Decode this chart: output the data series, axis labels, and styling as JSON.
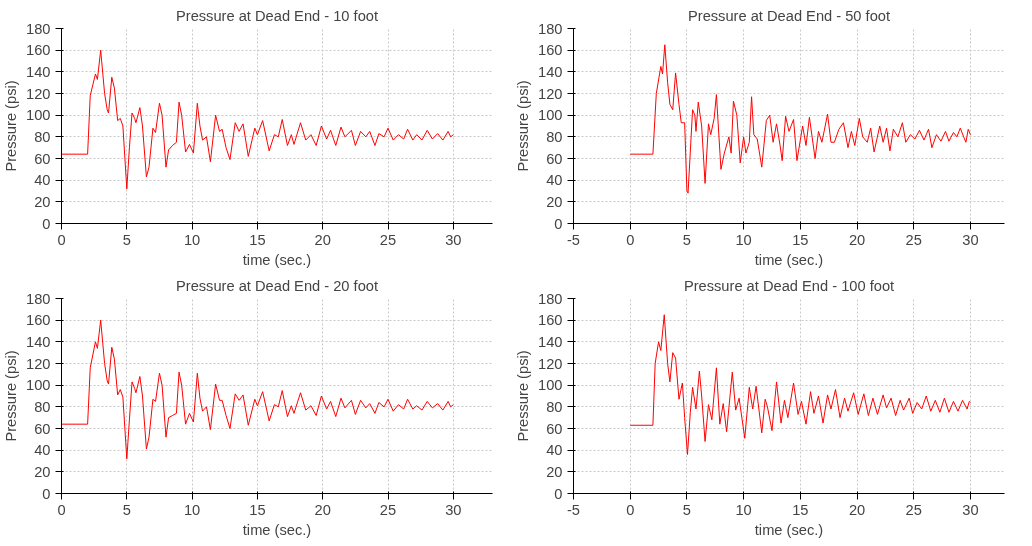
{
  "chart_data": [
    {
      "type": "line",
      "title": "Pressure at Dead End - 10 foot",
      "xlabel": "time (sec.)",
      "ylabel": "Pressure (psi)",
      "xlim": [
        0,
        33
      ],
      "ylim": [
        0,
        180
      ],
      "xticks": [
        0,
        5,
        10,
        15,
        20,
        25,
        30
      ],
      "yticks": [
        0,
        20,
        40,
        60,
        80,
        100,
        120,
        140,
        160,
        180
      ],
      "grid": true,
      "marker": "none",
      "line_style": "solid",
      "series": [
        {
          "color": "#ff0000",
          "x": [
            0,
            2,
            2.2,
            2.6,
            2.75,
            3,
            3.3,
            3.5,
            3.6,
            3.85,
            4.05,
            4.3,
            4.5,
            4.7,
            5,
            5.2,
            5.4,
            5.6,
            5.7,
            6,
            6.2,
            6.5,
            6.7,
            7,
            7.2,
            7.5,
            7.7,
            8,
            8.2,
            8.5,
            8.8,
            9,
            9.2,
            9.5,
            9.8,
            10.1,
            10.4,
            10.6,
            10.8,
            11.1,
            11.4,
            11.8,
            12.1,
            12.3,
            12.6,
            12.9,
            13.3,
            13.6,
            13.9,
            14.3,
            14.8,
            15,
            15.4,
            15.9,
            16.3,
            16.6,
            16.9,
            17.3,
            17.6,
            17.8,
            18.3,
            18.7,
            19.1,
            19.5,
            19.9,
            20.3,
            20.6,
            21,
            21.4,
            21.7,
            22.2,
            22.5,
            22.9,
            23.3,
            23.6,
            24,
            24.3,
            24.7,
            25,
            25.4,
            25.8,
            26.2,
            26.5,
            26.9,
            27.2,
            27.6,
            28,
            28.4,
            28.8,
            29.2,
            29.6,
            29.8,
            30
          ],
          "values": [
            64,
            64,
            118,
            138,
            133,
            160,
            120,
            105,
            102,
            135,
            125,
            95,
            97,
            90,
            32,
            70,
            102,
            97,
            93,
            107,
            90,
            43,
            52,
            88,
            84,
            111,
            100,
            52,
            68,
            72,
            75,
            112,
            100,
            66,
            73,
            65,
            111,
            90,
            77,
            80,
            57,
            100,
            85,
            87,
            70,
            59,
            93,
            85,
            92,
            62,
            88,
            82,
            95,
            67,
            82,
            80,
            96,
            72,
            82,
            73,
            93,
            77,
            82,
            72,
            90,
            78,
            86,
            72,
            89,
            80,
            86,
            72,
            85,
            80,
            85,
            72,
            83,
            80,
            88,
            77,
            82,
            78,
            87,
            77,
            82,
            77,
            86,
            78,
            83,
            77,
            85,
            80,
            82
          ]
        }
      ]
    },
    {
      "type": "line",
      "title": "Pressure at Dead End - 50 foot",
      "xlabel": "time (sec.)",
      "ylabel": "Pressure (psi)",
      "xlim": [
        -5,
        33
      ],
      "ylim": [
        0,
        180
      ],
      "xticks": [
        -5,
        0,
        5,
        10,
        15,
        20,
        25,
        30
      ],
      "yticks": [
        0,
        20,
        40,
        60,
        80,
        100,
        120,
        140,
        160,
        180
      ],
      "grid": true,
      "marker": "none",
      "line_style": "solid",
      "series": [
        {
          "color": "#ff0000",
          "x": [
            0,
            2,
            2.3,
            2.7,
            2.85,
            3.05,
            3.3,
            3.5,
            3.75,
            4,
            4.3,
            4.5,
            4.8,
            5,
            5.1,
            5.5,
            5.7,
            5.8,
            6,
            6.3,
            6.6,
            6.9,
            7.1,
            7.4,
            7.6,
            8,
            8.3,
            8.7,
            8.9,
            9.1,
            9.4,
            9.7,
            10,
            10.2,
            10.5,
            10.7,
            10.9,
            11.2,
            11.6,
            12,
            12.3,
            12.6,
            12.9,
            13.2,
            13.4,
            13.7,
            14,
            14.4,
            14.7,
            15.2,
            15.5,
            15.8,
            16.3,
            16.6,
            16.9,
            17.4,
            17.7,
            18,
            18.4,
            18.8,
            19.2,
            19.5,
            19.8,
            20.2,
            20.5,
            20.9,
            21.2,
            21.5,
            22,
            22.3,
            22.6,
            22.9,
            23.2,
            23.6,
            24,
            24.3,
            24.7,
            25.1,
            25.5,
            25.9,
            26.3,
            26.6,
            27,
            27.4,
            27.8,
            28.1,
            28.5,
            28.8,
            29.1,
            29.4,
            29.6,
            29.8,
            30
          ],
          "values": [
            64,
            64,
            120,
            145,
            138,
            165,
            130,
            110,
            105,
            139,
            110,
            93,
            93,
            30,
            28,
            105,
            100,
            85,
            112,
            90,
            37,
            92,
            82,
            97,
            119,
            50,
            65,
            80,
            65,
            113,
            100,
            56,
            80,
            65,
            75,
            117,
            82,
            78,
            52,
            95,
            100,
            75,
            92,
            73,
            58,
            99,
            85,
            96,
            58,
            90,
            72,
            98,
            60,
            85,
            75,
            101,
            75,
            75,
            87,
            93,
            70,
            85,
            72,
            97,
            80,
            75,
            88,
            66,
            90,
            75,
            88,
            67,
            87,
            80,
            93,
            75,
            82,
            78,
            86,
            77,
            87,
            70,
            82,
            76,
            85,
            76,
            84,
            80,
            88,
            80,
            75,
            87,
            82
          ]
        }
      ]
    },
    {
      "type": "line",
      "title": "Pressure at Dead End - 20 foot",
      "xlabel": "time (sec.)",
      "ylabel": "Pressure (psi)",
      "xlim": [
        0,
        33
      ],
      "ylim": [
        0,
        180
      ],
      "xticks": [
        0,
        5,
        10,
        15,
        20,
        25,
        30
      ],
      "yticks": [
        0,
        20,
        40,
        60,
        80,
        100,
        120,
        140,
        160,
        180
      ],
      "grid": true,
      "marker": "none",
      "line_style": "solid",
      "series": [
        {
          "color": "#ff0000",
          "x": [
            0,
            2,
            2.2,
            2.6,
            2.75,
            3,
            3.3,
            3.5,
            3.6,
            3.85,
            4.05,
            4.3,
            4.5,
            4.7,
            5,
            5.2,
            5.4,
            5.6,
            5.7,
            6,
            6.2,
            6.5,
            6.7,
            7,
            7.2,
            7.5,
            7.7,
            8,
            8.2,
            8.5,
            8.8,
            9,
            9.2,
            9.5,
            9.8,
            10.1,
            10.4,
            10.6,
            10.8,
            11.1,
            11.4,
            11.8,
            12.1,
            12.3,
            12.6,
            12.9,
            13.3,
            13.6,
            13.9,
            14.3,
            14.8,
            15,
            15.4,
            15.9,
            16.3,
            16.6,
            16.9,
            17.3,
            17.6,
            17.8,
            18.3,
            18.7,
            19.1,
            19.5,
            19.9,
            20.3,
            20.6,
            21,
            21.4,
            21.7,
            22.2,
            22.5,
            22.9,
            23.3,
            23.6,
            24,
            24.3,
            24.7,
            25,
            25.4,
            25.8,
            26.2,
            26.5,
            26.9,
            27.2,
            27.6,
            28,
            28.4,
            28.8,
            29.2,
            29.6,
            29.8,
            30
          ],
          "values": [
            64,
            64,
            116,
            140,
            134,
            160,
            120,
            104,
            101,
            135,
            124,
            91,
            96,
            89,
            32,
            68,
            103,
            97,
            93,
            108,
            90,
            41,
            52,
            87,
            85,
            111,
            100,
            52,
            70,
            72,
            74,
            112,
            100,
            64,
            74,
            66,
            111,
            88,
            76,
            80,
            59,
            101,
            86,
            86,
            72,
            60,
            92,
            86,
            91,
            63,
            87,
            81,
            94,
            67,
            82,
            80,
            95,
            71,
            81,
            74,
            93,
            77,
            81,
            72,
            90,
            78,
            85,
            71,
            88,
            79,
            86,
            73,
            86,
            79,
            83,
            74,
            84,
            80,
            87,
            76,
            82,
            78,
            87,
            78,
            81,
            77,
            85,
            79,
            83,
            77,
            85,
            80,
            82
          ]
        }
      ]
    },
    {
      "type": "line",
      "title": "Pressure at Dead End - 100 foot",
      "xlabel": "time (sec.)",
      "ylabel": "Pressure (psi)",
      "xlim": [
        -5,
        33
      ],
      "ylim": [
        0,
        180
      ],
      "xticks": [
        -5,
        0,
        5,
        10,
        15,
        20,
        25,
        30
      ],
      "yticks": [
        0,
        20,
        40,
        60,
        80,
        100,
        120,
        140,
        160,
        180
      ],
      "grid": true,
      "marker": "none",
      "line_style": "solid",
      "series": [
        {
          "color": "#ff0000",
          "x": [
            0,
            2,
            2.2,
            2.5,
            2.7,
            3,
            3.3,
            3.5,
            3.75,
            4,
            4.3,
            4.6,
            4.8,
            5.05,
            5.3,
            5.5,
            5.8,
            6.1,
            6.3,
            6.6,
            6.9,
            7.2,
            7.6,
            7.9,
            8.2,
            8.5,
            9,
            9.3,
            9.6,
            10.1,
            10.5,
            10.8,
            11.1,
            11.6,
            11.9,
            12.1,
            12.5,
            12.9,
            13.3,
            13.6,
            13.9,
            14.4,
            14.8,
            15.1,
            15.5,
            15.9,
            16.2,
            16.6,
            17,
            17.4,
            17.7,
            18.1,
            18.5,
            18.9,
            19.2,
            19.7,
            20.1,
            20.6,
            21,
            21.4,
            21.8,
            22.3,
            22.6,
            23,
            23.4,
            23.8,
            24.1,
            24.6,
            24.9,
            25.3,
            25.7,
            26.1,
            26.5,
            26.9,
            27.3,
            27.7,
            28.1,
            28.5,
            28.9,
            29.3,
            29.7,
            29.9,
            30
          ],
          "values": [
            63,
            63,
            120,
            140,
            132,
            165,
            120,
            103,
            130,
            125,
            87,
            102,
            70,
            36,
            75,
            98,
            78,
            113,
            90,
            48,
            82,
            68,
            116,
            64,
            83,
            57,
            112,
            77,
            88,
            51,
            98,
            78,
            99,
            56,
            87,
            80,
            58,
            103,
            65,
            86,
            70,
            102,
            73,
            85,
            64,
            94,
            74,
            90,
            65,
            91,
            78,
            96,
            70,
            88,
            76,
            93,
            73,
            92,
            72,
            88,
            73,
            91,
            79,
            88,
            72,
            86,
            77,
            88,
            74,
            84,
            78,
            90,
            76,
            86,
            75,
            88,
            75,
            85,
            76,
            86,
            78,
            85,
            84
          ]
        }
      ]
    }
  ]
}
